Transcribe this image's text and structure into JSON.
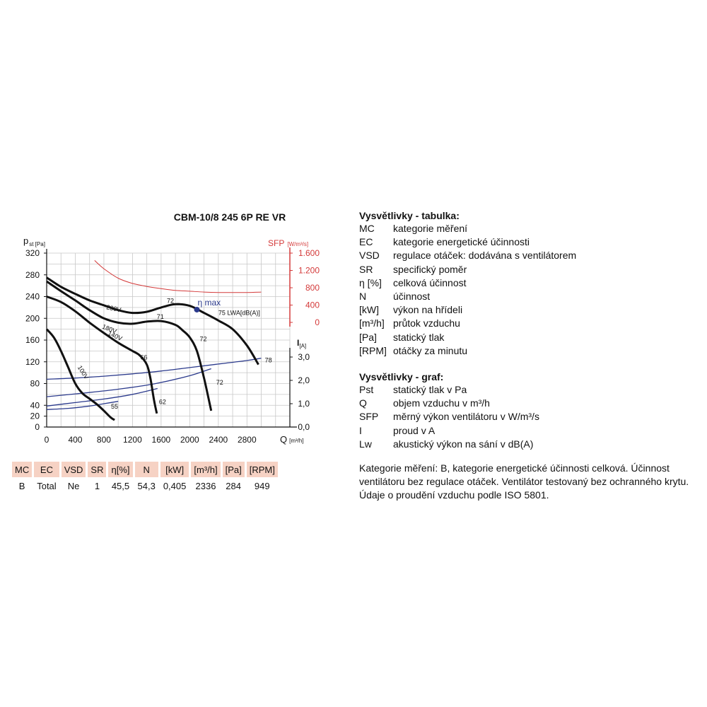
{
  "chart_data": {
    "type": "line",
    "title": "CBM-10/8 245 6P RE VR",
    "xlabel": "Q [m³/h]",
    "ylabel": "pst [Pa]",
    "ylabel_main": "p",
    "ylabel_sub": "st [Pa]",
    "xlabel_main": "Q",
    "xlabel_sub": "[m³/h]",
    "y2label_main": "SFP",
    "y2label_sub": "[W/m³/s]",
    "y3label_main": "I",
    "y3label_sub": "[A]",
    "xlim": [
      0,
      3400
    ],
    "ylim": [
      0,
      320
    ],
    "x_ticks": [
      "0",
      "400",
      "800",
      "1200",
      "1600",
      "2000",
      "2400",
      "2800"
    ],
    "y_ticks": [
      "0",
      "20",
      "40",
      "80",
      "120",
      "160",
      "200",
      "240",
      "280",
      "320"
    ],
    "sfp_ticks": [
      "0",
      "400",
      "800",
      "1.200",
      "1.600"
    ],
    "current_ticks": [
      "0,0",
      "1,0",
      "2,0",
      "3,0"
    ],
    "grid": true,
    "colors": {
      "pressure": "#111111",
      "current": "#2b3a8c",
      "sfp": "#d43a3a",
      "eta_marker": "#2b3a8c"
    },
    "pressure_series": [
      {
        "name": "230V",
        "x": [
          0,
          200,
          400,
          600,
          800,
          1000,
          1200,
          1400,
          1600,
          1800,
          2000,
          2200,
          2400,
          2600,
          2800,
          2960
        ],
        "y": [
          275,
          258,
          245,
          233,
          224,
          215,
          210,
          212,
          220,
          226,
          223,
          210,
          196,
          180,
          150,
          115
        ]
      },
      {
        "name": "180V",
        "x": [
          0,
          200,
          400,
          600,
          800,
          1000,
          1200,
          1400,
          1600,
          1800,
          1900,
          2000,
          2100,
          2200,
          2300
        ],
        "y": [
          268,
          250,
          233,
          215,
          200,
          192,
          190,
          194,
          195,
          188,
          178,
          165,
          140,
          90,
          30
        ]
      },
      {
        "name": "140V",
        "x": [
          0,
          200,
          400,
          600,
          800,
          1000,
          1200,
          1300,
          1400,
          1450,
          1500,
          1540
        ],
        "y": [
          240,
          230,
          213,
          192,
          173,
          155,
          140,
          132,
          115,
          90,
          50,
          25
        ]
      },
      {
        "name": "100V",
        "x": [
          0,
          100,
          200,
          300,
          400,
          500,
          600,
          700,
          800,
          900,
          950
        ],
        "y": [
          180,
          165,
          140,
          110,
          80,
          62,
          52,
          42,
          30,
          17,
          13
        ]
      }
    ],
    "current_series": [
      {
        "name": "I 230V",
        "x": [
          0,
          400,
          800,
          1200,
          1600,
          2000,
          2400,
          2800,
          3000
        ],
        "y": [
          2.05,
          2.1,
          2.18,
          2.28,
          2.4,
          2.55,
          2.7,
          2.85,
          2.95
        ]
      },
      {
        "name": "I 180V",
        "x": [
          0,
          500,
          1000,
          1500,
          2000,
          2300
        ],
        "y": [
          1.3,
          1.45,
          1.62,
          1.85,
          2.2,
          2.5
        ]
      },
      {
        "name": "I 140V",
        "x": [
          0,
          400,
          800,
          1200,
          1550
        ],
        "y": [
          0.9,
          1.05,
          1.2,
          1.4,
          1.65
        ]
      },
      {
        "name": "I 100V",
        "x": [
          0,
          300,
          600,
          800,
          1000
        ],
        "y": [
          0.75,
          0.8,
          0.9,
          1.0,
          1.1
        ]
      }
    ],
    "sfp_series": {
      "name": "SFP",
      "x": [
        670,
        800,
        1000,
        1200,
        1400,
        1600,
        1800,
        2000,
        2200,
        2400,
        2600,
        2800,
        3000
      ],
      "y": [
        1430,
        1240,
        1020,
        900,
        830,
        780,
        740,
        720,
        700,
        690,
        690,
        690,
        700
      ]
    },
    "efficiency_labels": [
      {
        "text": "72",
        "x": 1680,
        "y": 228
      },
      {
        "text": "71",
        "x": 1540,
        "y": 199
      },
      {
        "text": "72",
        "x": 2140,
        "y": 158
      },
      {
        "text": "66",
        "x": 1310,
        "y": 124
      },
      {
        "text": "72",
        "x": 2370,
        "y": 78
      },
      {
        "text": "62",
        "x": 1570,
        "y": 42
      },
      {
        "text": "55",
        "x": 900,
        "y": 34
      },
      {
        "text": "78",
        "x": 3050,
        "y": 119
      }
    ],
    "voltage_labels": [
      {
        "text": "230V",
        "x": 830,
        "y": 217
      },
      {
        "text": "180V",
        "x": 770,
        "y": 182
      },
      {
        "text": "140V",
        "x": 850,
        "y": 170
      },
      {
        "text": "100V",
        "x": 430,
        "y": 110
      }
    ],
    "eta_max": {
      "label": "η max",
      "x": 2100,
      "y": 216
    },
    "lwa_label": {
      "text": "75 LWA[dB(A)]",
      "x": 2400,
      "y": 206
    }
  },
  "specs_table": {
    "headers": [
      "MC",
      "EC",
      "VSD",
      "SR",
      "η[%]",
      "N",
      "[kW]",
      "[m³/h]",
      "[Pa]",
      "[RPM]"
    ],
    "values": [
      "B",
      "Total",
      "Ne",
      "1",
      "45,5",
      "54,3",
      "0,405",
      "2336",
      "284",
      "949"
    ]
  },
  "legend_table": {
    "title": "Vysvětlivky - tabulka:",
    "items": [
      {
        "abbr": "MC",
        "desc": "kategorie měření"
      },
      {
        "abbr": "EC",
        "desc": "kategorie energetické účinnosti"
      },
      {
        "abbr": "VSD",
        "desc": "regulace otáček: dodávána s ventilátorem"
      },
      {
        "abbr": "SR",
        "desc": "specifický poměr"
      },
      {
        "abbr": "η [%]",
        "desc": "celková účinnost"
      },
      {
        "abbr": "N",
        "desc": "účinnost"
      },
      {
        "abbr": "[kW]",
        "desc": "výkon na hřídeli"
      },
      {
        "abbr": "[m³/h]",
        "desc": "průtok vzduchu"
      },
      {
        "abbr": "[Pa]",
        "desc": "statický tlak"
      },
      {
        "abbr": "[RPM]",
        "desc": "otáčky za minutu"
      }
    ]
  },
  "legend_graph": {
    "title": "Vysvětlivky - graf:",
    "items": [
      {
        "abbr": "Pst",
        "desc": "statický tlak v Pa"
      },
      {
        "abbr": "Q",
        "desc": "objem vzduchu v m³/h"
      },
      {
        "abbr": "SFP",
        "desc": "měrný výkon ventilátoru v W/m³/s"
      },
      {
        "abbr": "I",
        "desc": "proud v A"
      },
      {
        "abbr": "Lw",
        "desc": "akustický výkon na sání v dB(A)"
      }
    ]
  },
  "notes": "Kategorie měření: B, kategorie energetické účinnosti celková. Účinnost ventilátoru bez regulace otáček. Ventilátor testovaný bez ochranného krytu. Údaje o proudění vzduchu podle ISO 5801."
}
